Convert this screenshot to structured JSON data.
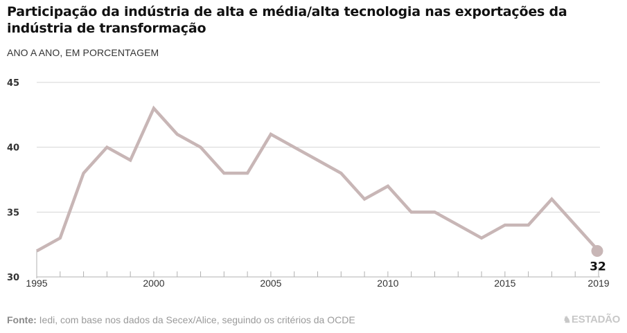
{
  "chart_data": {
    "type": "line",
    "title": "Participação da indústria de alta e média/alta tecnologia nas exportações da indústria de transformação",
    "subtitle": "ANO A ANO, EM PORCENTAGEM",
    "xlabel": "",
    "ylabel": "",
    "x": [
      1995,
      1996,
      1997,
      1998,
      1999,
      2000,
      2001,
      2002,
      2003,
      2004,
      2005,
      2006,
      2007,
      2008,
      2009,
      2010,
      2011,
      2012,
      2013,
      2014,
      2015,
      2016,
      2017,
      2018,
      2019
    ],
    "series": [
      {
        "name": "Participação (%)",
        "values": [
          32,
          33,
          38,
          40,
          39,
          43,
          41,
          40,
          38,
          38,
          41,
          40,
          39,
          38,
          36,
          37,
          35,
          35,
          34,
          33,
          34,
          34,
          36,
          34,
          32
        ],
        "color": "#c8b6b6"
      }
    ],
    "xlim": [
      1995,
      2019
    ],
    "ylim": [
      30,
      45
    ],
    "y_ticks": [
      30,
      35,
      40,
      45
    ],
    "y_tick_labels": [
      "30",
      "35",
      "40",
      "45"
    ],
    "x_tick_labels": [
      {
        "value": 1995,
        "label": "1995"
      },
      {
        "value": 2000,
        "label": "2000"
      },
      {
        "value": 2005,
        "label": "2005"
      },
      {
        "value": 2010,
        "label": "2010"
      },
      {
        "value": 2015,
        "label": "2015"
      },
      {
        "value": 2019,
        "label": "2019"
      }
    ],
    "grid": true,
    "annotations": [
      {
        "x": 2019,
        "y": 32,
        "label": "32"
      }
    ]
  },
  "footer": {
    "source_label": "Fonte:",
    "source_text": " Iedi, com base nos dados da Secex/Alice, seguindo os critérios da OCDE",
    "brand": "ESTADÃO",
    "brand_icon": "horse-rider-icon"
  },
  "colors": {
    "line": "#c8b6b6",
    "grid": "#d4d4d4",
    "axis": "#b0b0b0",
    "text": "#111111",
    "muted": "#9a9a9a"
  }
}
